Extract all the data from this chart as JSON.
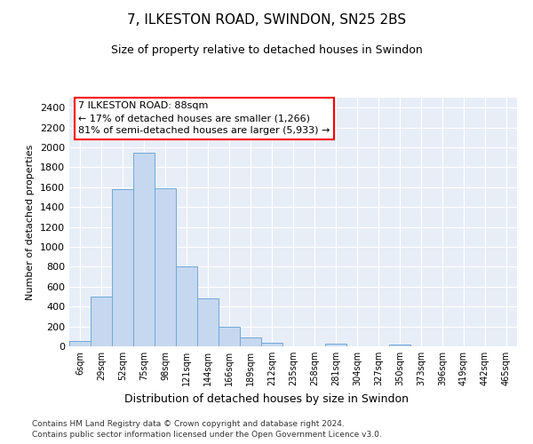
{
  "title": "7, ILKESTON ROAD, SWINDON, SN25 2BS",
  "subtitle": "Size of property relative to detached houses in Swindon",
  "xlabel": "Distribution of detached houses by size in Swindon",
  "ylabel": "Number of detached properties",
  "footnote1": "Contains HM Land Registry data © Crown copyright and database right 2024.",
  "footnote2": "Contains public sector information licensed under the Open Government Licence v3.0.",
  "annotation_line1": "7 ILKESTON ROAD: 88sqm",
  "annotation_line2": "← 17% of detached houses are smaller (1,266)",
  "annotation_line3": "81% of semi-detached houses are larger (5,933) →",
  "bar_color": "#c5d8f0",
  "bar_edge_color": "#6fa8d6",
  "background_color": "#e8eef8",
  "grid_color": "#ffffff",
  "categories": [
    "6sqm",
    "29sqm",
    "52sqm",
    "75sqm",
    "98sqm",
    "121sqm",
    "144sqm",
    "166sqm",
    "189sqm",
    "212sqm",
    "235sqm",
    "258sqm",
    "281sqm",
    "304sqm",
    "327sqm",
    "350sqm",
    "373sqm",
    "396sqm",
    "419sqm",
    "442sqm",
    "465sqm"
  ],
  "values": [
    55,
    500,
    1580,
    1950,
    1590,
    800,
    480,
    195,
    90,
    35,
    0,
    0,
    30,
    0,
    0,
    20,
    0,
    0,
    0,
    0,
    0
  ],
  "ylim": [
    0,
    2500
  ],
  "yticks": [
    0,
    200,
    400,
    600,
    800,
    1000,
    1200,
    1400,
    1600,
    1800,
    2000,
    2200,
    2400
  ],
  "title_fontsize": 11,
  "subtitle_fontsize": 9,
  "ylabel_fontsize": 8,
  "xlabel_fontsize": 9,
  "tick_fontsize": 8,
  "xtick_fontsize": 7,
  "footnote_fontsize": 6.5,
  "annot_fontsize": 8
}
